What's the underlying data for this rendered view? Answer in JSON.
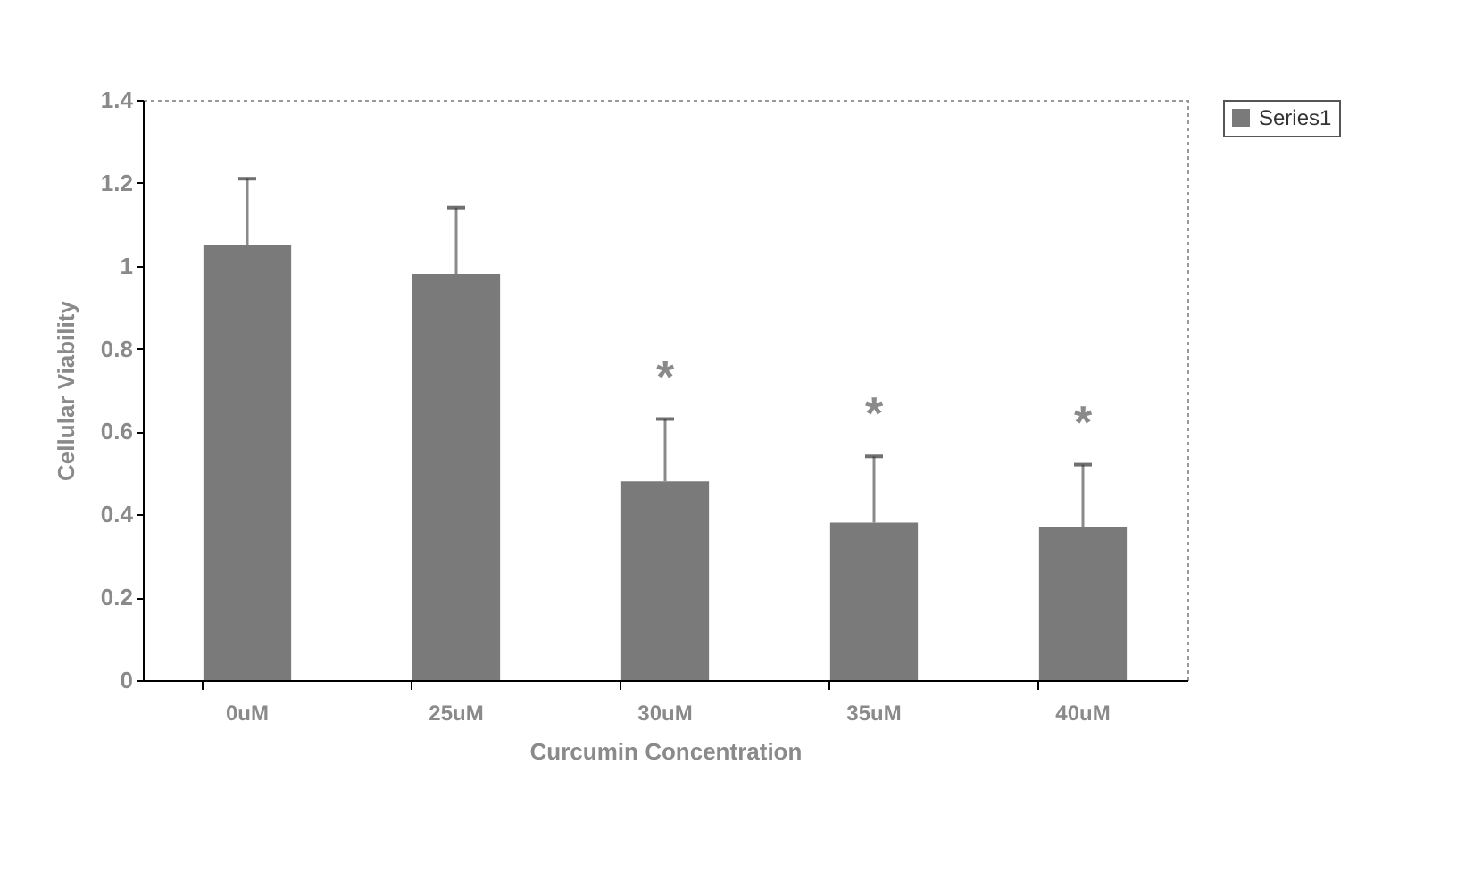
{
  "chart_data": {
    "type": "bar",
    "xlabel": "Curcumin Concentration",
    "ylabel": "Cellular Viability",
    "categories": [
      "0uM",
      "25uM",
      "30uM",
      "35uM",
      "40uM"
    ],
    "series": [
      {
        "name": "Series1",
        "color": "#7a7a7a",
        "values": [
          1.05,
          0.98,
          0.48,
          0.38,
          0.37
        ],
        "errors": [
          [
            1.05,
            1.21
          ],
          [
            0.98,
            1.14
          ],
          [
            0.48,
            0.63
          ],
          [
            0.38,
            0.54
          ],
          [
            0.37,
            0.52
          ]
        ]
      }
    ],
    "annotations": [
      {
        "text": "*",
        "x": "30uM",
        "y": 0.63
      },
      {
        "text": "*",
        "x": "35uM",
        "y": 0.54
      },
      {
        "text": "*",
        "x": "40uM",
        "y": 0.52
      }
    ],
    "ylim": [
      0,
      1.4
    ],
    "yticks": [
      0,
      0.2,
      0.4,
      0.6,
      0.8,
      1,
      1.2,
      1.4
    ],
    "grid": false,
    "legend": "right"
  }
}
